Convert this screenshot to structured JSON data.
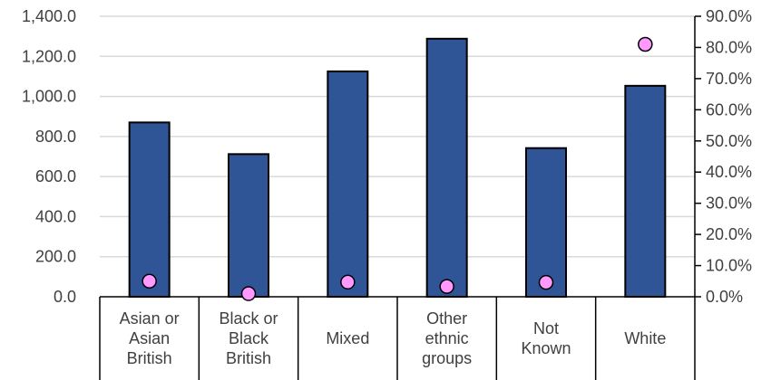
{
  "chart_data": {
    "type": "bar",
    "categories": [
      [
        "Asian or",
        "Asian",
        "British"
      ],
      [
        "Black or",
        "Black",
        "British"
      ],
      [
        "Mixed"
      ],
      [
        "Other",
        "ethnic",
        "groups"
      ],
      [
        "Not",
        "Known"
      ],
      [
        "White"
      ]
    ],
    "series": [
      {
        "type": "bar",
        "axis": "left",
        "values": [
          870,
          712,
          1125,
          1288,
          742,
          1053
        ]
      },
      {
        "type": "scatter",
        "axis": "right",
        "values": [
          0.05,
          0.01,
          0.047,
          0.033,
          0.046,
          0.81
        ]
      }
    ],
    "y_left": {
      "ylim": [
        0,
        1400
      ],
      "ticks": [
        "0.0",
        "200.0",
        "400.0",
        "600.0",
        "800.0",
        "1,000.0",
        "1,200.0",
        "1,400.0"
      ]
    },
    "y_right": {
      "ylim": [
        0,
        0.9
      ],
      "ticks": [
        "0.0%",
        "10.0%",
        "20.0%",
        "30.0%",
        "40.0%",
        "50.0%",
        "60.0%",
        "70.0%",
        "80.0%",
        "90.0%"
      ]
    },
    "grid": true,
    "legend": "none",
    "colors": {
      "bar": "#2f5597",
      "bar_outline": "#000000",
      "marker": "#ff99ff",
      "marker_outline": "#000000",
      "grid": "#d9d9d9",
      "text": "#404040"
    }
  }
}
